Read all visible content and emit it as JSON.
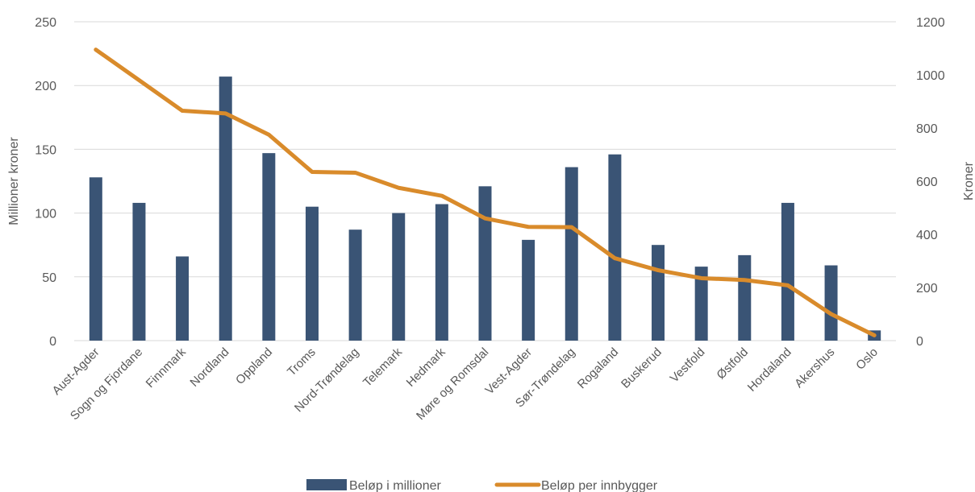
{
  "chart_data": {
    "type": "bar",
    "categories": [
      "Aust-Agder",
      "Sogn og Fjordane",
      "Finnmark",
      "Nordland",
      "Oppland",
      "Troms",
      "Nord-Trøndelag",
      "Telemark",
      "Hedmark",
      "Møre og Romsdal",
      "Vest-Agder",
      "Sør-Trøndelag",
      "Rogaland",
      "Buskerud",
      "Vestfold",
      "Østfold",
      "Hordaland",
      "Akershus",
      "Oslo"
    ],
    "series": [
      {
        "name": "Beløp i millioner",
        "type": "bar",
        "axis": "left",
        "color": "#3a5475",
        "values": [
          128,
          108,
          66,
          207,
          147,
          105,
          87,
          100,
          107,
          121,
          79,
          136,
          146,
          75,
          58,
          67,
          108,
          59,
          8
        ]
      },
      {
        "name": "Beløp per innbygger",
        "type": "line",
        "axis": "right",
        "color": "#d98b2b",
        "values": [
          1095,
          980,
          865,
          855,
          775,
          635,
          632,
          575,
          545,
          460,
          428,
          427,
          310,
          265,
          235,
          228,
          208,
          100,
          20
        ]
      }
    ],
    "ylabel": "Millioner kroner",
    "ylabel_right": "Kroner",
    "ylim": [
      0,
      250
    ],
    "y_ticks": [
      "0",
      "50",
      "100",
      "150",
      "200",
      "250"
    ],
    "ylim_right": [
      0,
      1200
    ],
    "y_ticks_right": [
      "0",
      "200",
      "400",
      "600",
      "800",
      "1000",
      "1200"
    ],
    "grid": true,
    "legend_position": "bottom"
  }
}
